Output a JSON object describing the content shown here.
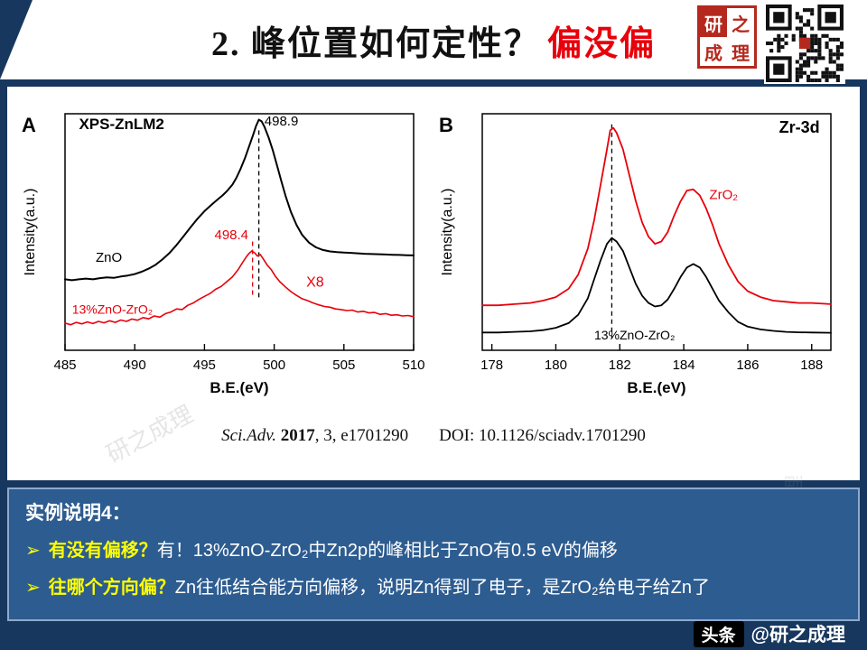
{
  "header": {
    "title_black": "2. 峰位置如何定性？",
    "title_red": "偏没偏",
    "logo_chars": [
      "研",
      "之",
      "成",
      "理"
    ]
  },
  "citation": {
    "segments": [
      {
        "t": "Sci.Adv.",
        "style": "italic"
      },
      {
        "t": " ",
        "style": "normal"
      },
      {
        "t": "2017",
        "style": "bold"
      },
      {
        "t": ", 3, e1701290",
        "style": "normal"
      },
      {
        "t": "DOI: 10.1126/sciadv.1701290",
        "style": "doi"
      }
    ]
  },
  "info_box": {
    "heading": "实例说明4：",
    "bullet_glyph": "➢",
    "bullets": [
      {
        "segments": [
          {
            "t": "有没有偏移？",
            "style": "yellow"
          },
          {
            "t": "有！13%ZnO-ZrO₂中Zn2p的峰相比于ZnO有0.5 eV的偏移",
            "style": "white"
          }
        ]
      },
      {
        "segments": [
          {
            "t": "往哪个方向偏？",
            "style": "yellow"
          },
          {
            "t": "Zn往低结合能方向偏移，说明Zn得到了电子，是ZrO₂给电子给Zn了",
            "style": "white"
          }
        ]
      }
    ]
  },
  "footer": {
    "badge": "头条",
    "handle": "@研之成理"
  },
  "watermark": "研之成理",
  "colors": {
    "accent_red": "#e8000b",
    "navy": "#17375e",
    "info_blue": "#2d5c90",
    "yellow": "#ffff00"
  },
  "chart_data": [
    {
      "type": "line",
      "panel_label": "A",
      "title": "XPS-ZnLM2",
      "xlabel": "B.E.(eV)",
      "ylabel": "Intensity(a.u.)",
      "xlim": [
        485,
        510
      ],
      "xticks": [
        485,
        490,
        495,
        500,
        505,
        510
      ],
      "grid": false,
      "legend": "in-plot text labels",
      "series": [
        {
          "name": "ZnO",
          "color": "#000000",
          "width": 2,
          "points": [
            [
              485,
              0.3
            ],
            [
              485.5,
              0.296
            ],
            [
              486,
              0.3
            ],
            [
              486.5,
              0.303
            ],
            [
              487,
              0.3
            ],
            [
              487.5,
              0.305
            ],
            [
              488,
              0.308
            ],
            [
              488.5,
              0.306
            ],
            [
              489,
              0.312
            ],
            [
              489.5,
              0.316
            ],
            [
              490,
              0.322
            ],
            [
              490.5,
              0.332
            ],
            [
              491,
              0.345
            ],
            [
              491.5,
              0.362
            ],
            [
              492,
              0.385
            ],
            [
              492.5,
              0.412
            ],
            [
              493,
              0.445
            ],
            [
              493.5,
              0.482
            ],
            [
              494,
              0.52
            ],
            [
              494.5,
              0.556
            ],
            [
              495,
              0.588
            ],
            [
              495.5,
              0.615
            ],
            [
              496,
              0.64
            ],
            [
              496.3,
              0.655
            ],
            [
              496.6,
              0.672
            ],
            [
              497,
              0.7
            ],
            [
              497.3,
              0.73
            ],
            [
              497.6,
              0.768
            ],
            [
              497.9,
              0.812
            ],
            [
              498.2,
              0.862
            ],
            [
              498.5,
              0.912
            ],
            [
              498.7,
              0.948
            ],
            [
              498.9,
              0.975
            ],
            [
              499.1,
              0.968
            ],
            [
              499.3,
              0.945
            ],
            [
              499.6,
              0.9
            ],
            [
              499.9,
              0.845
            ],
            [
              500.2,
              0.782
            ],
            [
              500.5,
              0.718
            ],
            [
              500.8,
              0.655
            ],
            [
              501.2,
              0.585
            ],
            [
              501.6,
              0.53
            ],
            [
              502,
              0.488
            ],
            [
              502.5,
              0.455
            ],
            [
              503,
              0.435
            ],
            [
              503.5,
              0.424
            ],
            [
              504,
              0.418
            ],
            [
              504.5,
              0.415
            ],
            [
              505,
              0.413
            ],
            [
              505.5,
              0.412
            ],
            [
              506,
              0.41
            ],
            [
              506.5,
              0.408
            ],
            [
              507,
              0.407
            ],
            [
              507.5,
              0.406
            ],
            [
              508,
              0.405
            ],
            [
              508.5,
              0.404
            ],
            [
              509,
              0.403
            ],
            [
              509.5,
              0.402
            ],
            [
              510,
              0.401
            ]
          ]
        },
        {
          "name": "13%ZnO-ZrO₂ (X8)",
          "color": "#e8000b",
          "width": 1.6,
          "points": [
            [
              485,
              0.115
            ],
            [
              485.4,
              0.108
            ],
            [
              485.8,
              0.118
            ],
            [
              486.2,
              0.112
            ],
            [
              486.6,
              0.12
            ],
            [
              487,
              0.113
            ],
            [
              487.4,
              0.122
            ],
            [
              487.8,
              0.116
            ],
            [
              488.2,
              0.125
            ],
            [
              488.6,
              0.118
            ],
            [
              489,
              0.128
            ],
            [
              489.4,
              0.122
            ],
            [
              489.8,
              0.132
            ],
            [
              490.2,
              0.127
            ],
            [
              490.6,
              0.138
            ],
            [
              491,
              0.133
            ],
            [
              491.4,
              0.145
            ],
            [
              491.8,
              0.14
            ],
            [
              492.2,
              0.155
            ],
            [
              492.6,
              0.162
            ],
            [
              493,
              0.175
            ],
            [
              493.4,
              0.172
            ],
            [
              493.8,
              0.19
            ],
            [
              494.2,
              0.2
            ],
            [
              494.6,
              0.215
            ],
            [
              495,
              0.228
            ],
            [
              495.4,
              0.24
            ],
            [
              495.8,
              0.258
            ],
            [
              496.2,
              0.27
            ],
            [
              496.6,
              0.29
            ],
            [
              497,
              0.31
            ],
            [
              497.4,
              0.34
            ],
            [
              497.7,
              0.368
            ],
            [
              498,
              0.395
            ],
            [
              498.2,
              0.41
            ],
            [
              498.4,
              0.42
            ],
            [
              498.6,
              0.412
            ],
            [
              498.8,
              0.398
            ],
            [
              499,
              0.405
            ],
            [
              499.2,
              0.388
            ],
            [
              499.5,
              0.36
            ],
            [
              499.8,
              0.34
            ],
            [
              500.1,
              0.312
            ],
            [
              500.4,
              0.29
            ],
            [
              500.8,
              0.268
            ],
            [
              501.2,
              0.248
            ],
            [
              501.6,
              0.232
            ],
            [
              502,
              0.218
            ],
            [
              502.4,
              0.21
            ],
            [
              502.8,
              0.2
            ],
            [
              503.2,
              0.192
            ],
            [
              503.6,
              0.185
            ],
            [
              504,
              0.182
            ],
            [
              504.4,
              0.175
            ],
            [
              504.8,
              0.172
            ],
            [
              505.2,
              0.168
            ],
            [
              505.6,
              0.17
            ],
            [
              506,
              0.162
            ],
            [
              506.4,
              0.165
            ],
            [
              506.8,
              0.158
            ],
            [
              507.2,
              0.16
            ],
            [
              507.6,
              0.152
            ],
            [
              508,
              0.155
            ],
            [
              508.4,
              0.148
            ],
            [
              508.8,
              0.15
            ],
            [
              509.2,
              0.145
            ],
            [
              509.6,
              0.147
            ],
            [
              510,
              0.142
            ]
          ]
        }
      ],
      "dashed_lines": [
        {
          "x": 498.9,
          "y1": 0.93,
          "y2": 0.22,
          "color": "#000000"
        },
        {
          "x": 498.45,
          "y1": 0.46,
          "y2": 0.22,
          "color": "#e8000b"
        }
      ],
      "annotations": [
        {
          "text": "XPS-ZnLM2",
          "x": 486.0,
          "y": 0.935,
          "color": "#000000",
          "anchor": "start",
          "size": 17,
          "weight": "bold"
        },
        {
          "text": "498.9",
          "x": 499.3,
          "y": 0.95,
          "color": "#000000",
          "anchor": "start",
          "size": 15
        },
        {
          "text": "498.4",
          "x": 498.15,
          "y": 0.47,
          "color": "#e8000b",
          "anchor": "end",
          "size": 15
        },
        {
          "text": "X8",
          "x": 502.3,
          "y": 0.27,
          "color": "#e8000b",
          "anchor": "start",
          "size": 16
        },
        {
          "text": "ZnO",
          "x": 487.2,
          "y": 0.375,
          "color": "#000000",
          "anchor": "start",
          "size": 15
        },
        {
          "text": "13%ZnO-ZrO₂",
          "x": 485.5,
          "y": 0.155,
          "color": "#e8000b",
          "anchor": "start",
          "size": 14
        }
      ]
    },
    {
      "type": "line",
      "panel_label": "B",
      "title": "Zr-3d",
      "xlabel": "B.E.(eV)",
      "ylabel": "Intensity(a.u.)",
      "xlim": [
        177.7,
        188.6
      ],
      "xticks": [
        178,
        180,
        182,
        184,
        186,
        188
      ],
      "grid": false,
      "legend": "in-plot text labels",
      "series": [
        {
          "name": "ZrO₂",
          "color": "#e8000b",
          "width": 1.8,
          "points": [
            [
              177.7,
              0.19
            ],
            [
              178.2,
              0.19
            ],
            [
              178.7,
              0.195
            ],
            [
              179.2,
              0.2
            ],
            [
              179.6,
              0.21
            ],
            [
              180.0,
              0.225
            ],
            [
              180.4,
              0.26
            ],
            [
              180.7,
              0.32
            ],
            [
              181.0,
              0.43
            ],
            [
              181.2,
              0.55
            ],
            [
              181.4,
              0.7
            ],
            [
              181.6,
              0.85
            ],
            [
              181.7,
              0.93
            ],
            [
              181.8,
              0.94
            ],
            [
              181.9,
              0.92
            ],
            [
              182.1,
              0.85
            ],
            [
              182.3,
              0.74
            ],
            [
              182.5,
              0.63
            ],
            [
              182.7,
              0.54
            ],
            [
              182.9,
              0.48
            ],
            [
              183.1,
              0.45
            ],
            [
              183.3,
              0.46
            ],
            [
              183.5,
              0.5
            ],
            [
              183.7,
              0.57
            ],
            [
              183.9,
              0.63
            ],
            [
              184.1,
              0.675
            ],
            [
              184.3,
              0.68
            ],
            [
              184.5,
              0.655
            ],
            [
              184.7,
              0.6
            ],
            [
              184.9,
              0.53
            ],
            [
              185.1,
              0.45
            ],
            [
              185.4,
              0.36
            ],
            [
              185.7,
              0.29
            ],
            [
              186.0,
              0.25
            ],
            [
              186.4,
              0.225
            ],
            [
              186.8,
              0.21
            ],
            [
              187.2,
              0.205
            ],
            [
              187.6,
              0.2
            ],
            [
              188.0,
              0.2
            ],
            [
              188.6,
              0.195
            ]
          ]
        },
        {
          "name": "13%ZnO-ZrO₂",
          "color": "#000000",
          "width": 1.8,
          "points": [
            [
              177.7,
              0.075
            ],
            [
              178.2,
              0.075
            ],
            [
              178.7,
              0.078
            ],
            [
              179.2,
              0.08
            ],
            [
              179.6,
              0.085
            ],
            [
              180.0,
              0.095
            ],
            [
              180.4,
              0.115
            ],
            [
              180.7,
              0.15
            ],
            [
              181.0,
              0.22
            ],
            [
              181.2,
              0.3
            ],
            [
              181.4,
              0.38
            ],
            [
              181.6,
              0.45
            ],
            [
              181.75,
              0.475
            ],
            [
              181.9,
              0.46
            ],
            [
              182.1,
              0.42
            ],
            [
              182.3,
              0.35
            ],
            [
              182.5,
              0.28
            ],
            [
              182.7,
              0.23
            ],
            [
              182.9,
              0.2
            ],
            [
              183.1,
              0.185
            ],
            [
              183.3,
              0.19
            ],
            [
              183.5,
              0.215
            ],
            [
              183.7,
              0.26
            ],
            [
              183.9,
              0.31
            ],
            [
              184.1,
              0.35
            ],
            [
              184.3,
              0.365
            ],
            [
              184.5,
              0.35
            ],
            [
              184.7,
              0.31
            ],
            [
              184.9,
              0.26
            ],
            [
              185.1,
              0.21
            ],
            [
              185.4,
              0.16
            ],
            [
              185.7,
              0.12
            ],
            [
              186.0,
              0.1
            ],
            [
              186.4,
              0.088
            ],
            [
              186.8,
              0.082
            ],
            [
              187.2,
              0.078
            ],
            [
              187.6,
              0.076
            ],
            [
              188.0,
              0.075
            ],
            [
              188.6,
              0.074
            ]
          ]
        }
      ],
      "dashed_lines": [
        {
          "x": 181.75,
          "y1": 0.955,
          "y2": 0.05,
          "color": "#000000"
        }
      ],
      "annotations": [
        {
          "text": "Zr-3d",
          "x": 188.25,
          "y": 0.92,
          "color": "#000000",
          "anchor": "end",
          "size": 18,
          "weight": "bold"
        },
        {
          "text": "ZrO₂",
          "x": 184.8,
          "y": 0.64,
          "color": "#e8000b",
          "anchor": "start",
          "size": 15
        },
        {
          "text": "13%ZnO-ZrO₂",
          "x": 181.2,
          "y": 0.045,
          "color": "#000000",
          "anchor": "start",
          "size": 14
        }
      ]
    }
  ]
}
